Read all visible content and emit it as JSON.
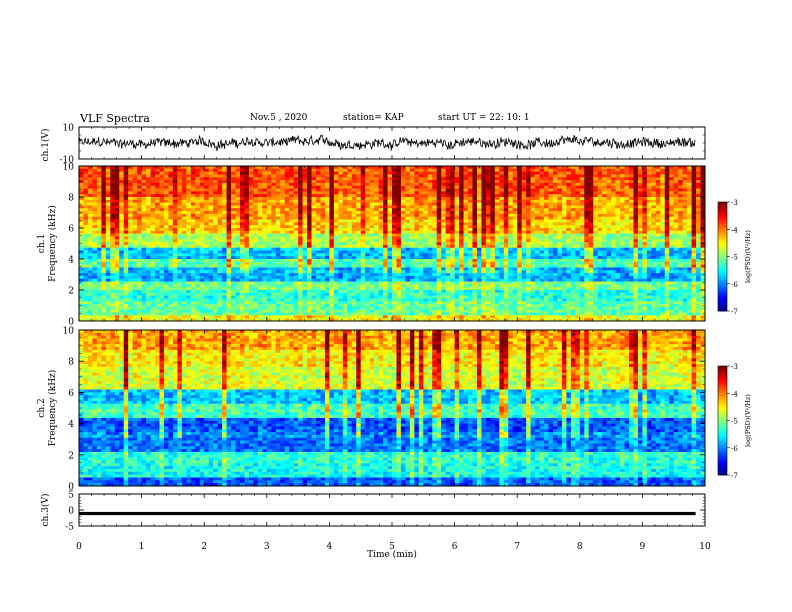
{
  "header": {
    "title": "VLF Spectra",
    "date": "Nov.5 , 2020",
    "station": "station= KAP",
    "start": "start UT = 22: 10: 1"
  },
  "chart_data": [
    {
      "type": "line",
      "panel": "ch1-waveform",
      "ylabel": "ch.1(V)",
      "ylim": [
        -10,
        10
      ],
      "ytick_labels": [
        "10",
        "-10"
      ],
      "xlim": [
        0,
        10
      ],
      "x_range_min": [
        0,
        9.85
      ],
      "series": [
        {
          "values_approx_range": [
            -6,
            6
          ]
        }
      ]
    },
    {
      "type": "heatmap",
      "panel": "ch1-spectrogram",
      "ylabel": "ch.1 Frequency (kHz)",
      "ylim": [
        0,
        10
      ],
      "ytick_labels": [
        "0",
        "2",
        "4",
        "6",
        "8",
        "10"
      ],
      "xlim": [
        0,
        10
      ],
      "band_rows_khz": [
        {
          "f_lo": 0.0,
          "f_hi": 0.4,
          "level": -4.6
        },
        {
          "f_lo": 0.4,
          "f_hi": 1.3,
          "level": -5.2
        },
        {
          "f_lo": 1.3,
          "f_hi": 2.0,
          "level": -5.4
        },
        {
          "f_lo": 2.0,
          "f_hi": 2.6,
          "level": -5.1
        },
        {
          "f_lo": 2.6,
          "f_hi": 3.4,
          "level": -5.9
        },
        {
          "f_lo": 3.4,
          "f_hi": 4.0,
          "level": -5.3
        },
        {
          "f_lo": 4.0,
          "f_hi": 4.8,
          "level": -5.9
        },
        {
          "f_lo": 4.8,
          "f_hi": 5.6,
          "level": -5.0
        },
        {
          "f_lo": 5.6,
          "f_hi": 6.5,
          "level": -4.5
        },
        {
          "f_lo": 6.5,
          "f_hi": 8.0,
          "level": -4.3
        },
        {
          "f_lo": 8.0,
          "f_hi": 10.0,
          "level": -4.0
        }
      ],
      "colorbar": {
        "label": "log(PSD)(V²/Hz)",
        "range": [
          -7,
          -3
        ],
        "tick_labels": [
          "-3",
          "-4",
          "-5",
          "-6",
          "-7"
        ]
      }
    },
    {
      "type": "heatmap",
      "panel": "ch2-spectrogram",
      "ylabel": "ch.2 Frequency (kHz)",
      "ylim": [
        0,
        10
      ],
      "ytick_labels": [
        "0",
        "2",
        "4",
        "6",
        "8",
        "10"
      ],
      "xlim": [
        0,
        10
      ],
      "band_rows_khz": [
        {
          "f_lo": 0.0,
          "f_hi": 0.5,
          "level": -6.2
        },
        {
          "f_lo": 0.5,
          "f_hi": 1.4,
          "level": -5.5
        },
        {
          "f_lo": 1.4,
          "f_hi": 2.2,
          "level": -5.4
        },
        {
          "f_lo": 2.2,
          "f_hi": 3.4,
          "level": -6.1
        },
        {
          "f_lo": 3.4,
          "f_hi": 4.4,
          "level": -6.3
        },
        {
          "f_lo": 4.4,
          "f_hi": 5.2,
          "level": -5.4
        },
        {
          "f_lo": 5.2,
          "f_hi": 6.2,
          "level": -5.9
        },
        {
          "f_lo": 6.2,
          "f_hi": 7.6,
          "level": -4.8
        },
        {
          "f_lo": 7.6,
          "f_hi": 8.8,
          "level": -4.6
        },
        {
          "f_lo": 8.8,
          "f_hi": 10.0,
          "level": -4.3
        }
      ],
      "colorbar": {
        "label": "log(PSD)(V²/Hz)",
        "range": [
          -7,
          -3
        ],
        "tick_labels": [
          "-3",
          "-4",
          "-5",
          "-6",
          "-7"
        ]
      }
    },
    {
      "type": "line",
      "panel": "ch3-waveform",
      "ylabel": "ch.3(V)",
      "ylim": [
        -5,
        5
      ],
      "ytick_labels": [
        "5",
        "0",
        "-5"
      ],
      "xlim": [
        0,
        10
      ],
      "x_range_min": [
        0,
        9.85
      ],
      "series": [
        {
          "values_approx_range": [
            -0.5,
            0.5
          ],
          "center": -1.1
        }
      ],
      "xlabel": "Time (min)",
      "xtick_labels": [
        "0",
        "1",
        "2",
        "3",
        "4",
        "5",
        "6",
        "7",
        "8",
        "9",
        "10"
      ]
    }
  ]
}
